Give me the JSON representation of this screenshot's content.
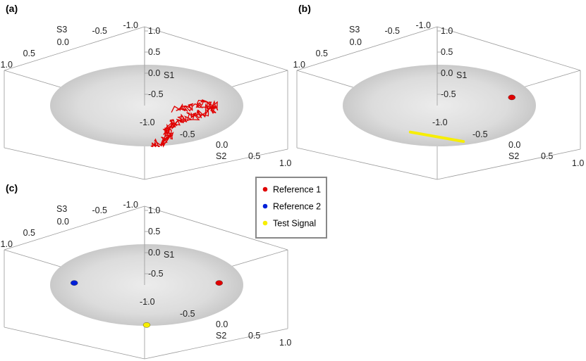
{
  "chart_data": [
    {
      "panel_label": "(a)",
      "type": "scatter",
      "title": "",
      "axes": {
        "S1": {
          "label": "S1",
          "range": [
            -1.0,
            1.0
          ],
          "ticks": [
            "-1.0",
            "-0.5",
            "0.0",
            "0.5",
            "1.0"
          ],
          "visible_ticks": [
            "-1.0",
            "-0.5",
            "0.0",
            "0.5",
            "1.0"
          ]
        },
        "S2": {
          "label": "S2",
          "range": [
            -1.0,
            1.0
          ],
          "ticks": [
            "-1.0",
            "-0.5",
            "0.0",
            "0.5",
            "1.0"
          ]
        },
        "S3": {
          "label": "S3",
          "range": [
            -1.0,
            1.0
          ],
          "ticks": [
            "1.0",
            "0.5",
            "0.0",
            "-0.5",
            "-1.0"
          ]
        }
      },
      "sphere": "Poincare sphere (equatorial disk shown)",
      "series": [
        {
          "name": "Reference 1",
          "color": "#e00000",
          "kind": "random-walk trace",
          "points": [
            [
              0.3,
              -0.08
            ],
            [
              0.44,
              -0.05
            ],
            [
              0.58,
              0.05
            ],
            [
              0.7,
              0.0
            ],
            [
              0.66,
              -0.12
            ],
            [
              0.52,
              -0.25
            ],
            [
              0.38,
              -0.3
            ],
            [
              0.28,
              -0.45
            ],
            [
              0.2,
              -0.6
            ],
            [
              0.25,
              -0.75
            ],
            [
              0.15,
              -0.9
            ],
            [
              0.05,
              -0.98
            ]
          ]
        }
      ]
    },
    {
      "panel_label": "(b)",
      "type": "scatter",
      "title": "",
      "axes": {
        "S1": {
          "label": "S1",
          "range": [
            -1.0,
            1.0
          ],
          "ticks": [
            "-1.0",
            "-0.5",
            "0.0",
            "0.5",
            "1.0"
          ]
        },
        "S2": {
          "label": "S2",
          "range": [
            -1.0,
            1.0
          ],
          "ticks": [
            "-1.0",
            "-0.5",
            "0.0",
            "0.5",
            "1.0"
          ]
        },
        "S3": {
          "label": "S3",
          "range": [
            -1.0,
            1.0
          ],
          "ticks": [
            "1.0",
            "0.5",
            "0.0",
            "-0.5",
            "-1.0"
          ]
        }
      },
      "series": [
        {
          "name": "Reference 1",
          "color": "#e00000",
          "points": [
            [
              0.75,
              0.2
            ]
          ]
        },
        {
          "name": "Test Signal",
          "color": "#f7ee00",
          "points": [
            [
              -0.3,
              -0.65
            ],
            [
              0.25,
              -0.88
            ]
          ]
        }
      ]
    },
    {
      "panel_label": "(c)",
      "type": "scatter",
      "title": "",
      "axes": {
        "S1": {
          "label": "S1",
          "range": [
            -1.0,
            1.0
          ],
          "ticks": [
            "-1.0",
            "-0.5",
            "0.0",
            "0.5",
            "1.0"
          ]
        },
        "S2": {
          "label": "S2",
          "range": [
            -1.0,
            1.0
          ],
          "ticks": [
            "-1.0",
            "-0.5",
            "0.0",
            "0.5",
            "1.0"
          ]
        },
        "S3": {
          "label": "S3",
          "range": [
            -1.0,
            1.0
          ],
          "ticks": [
            "1.0",
            "0.5",
            "0.0",
            "-0.5",
            "-1.0"
          ]
        }
      },
      "series": [
        {
          "name": "Reference 1",
          "color": "#e00000",
          "points": [
            [
              0.75,
              0.05
            ]
          ]
        },
        {
          "name": "Reference 2",
          "color": "#0020d8",
          "points": [
            [
              -0.75,
              0.05
            ]
          ]
        },
        {
          "name": "Test Signal",
          "color": "#f7ee00",
          "points": [
            [
              0.0,
              -0.98
            ]
          ]
        }
      ]
    }
  ],
  "legend": {
    "placement": "center-right",
    "items": [
      {
        "label": "Reference 1",
        "color": "#e00000"
      },
      {
        "label": "Reference 2",
        "color": "#0020d8"
      },
      {
        "label": "Test Signal",
        "color": "#f7ee00"
      }
    ]
  }
}
